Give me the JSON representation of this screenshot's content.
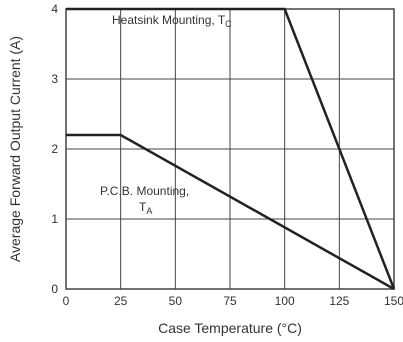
{
  "chart_data": {
    "type": "line",
    "xlabel": "Case Temperature (°C)",
    "ylabel": "Average Forward Output Current (A)",
    "xlim": [
      0,
      150
    ],
    "ylim": [
      0,
      4
    ],
    "x_ticks": [
      "0",
      "25",
      "50",
      "75",
      "100",
      "125",
      "150"
    ],
    "y_ticks": [
      "0",
      "1",
      "2",
      "3",
      "4"
    ],
    "grid": true,
    "series": [
      {
        "points": [
          [
            0,
            4
          ],
          [
            100,
            4
          ],
          [
            150,
            0
          ]
        ],
        "annotation": {
          "text": "Heatsink Mounting, T",
          "sub": "C"
        }
      },
      {
        "points": [
          [
            0,
            2.2
          ],
          [
            25,
            2.2
          ],
          [
            150,
            0
          ]
        ],
        "annotation": {
          "line1": "P.C.B. Mounting,",
          "line2": "T",
          "sub": "A"
        }
      }
    ],
    "colors": {
      "line": "#222222",
      "grid": "#444444",
      "text": "#333333"
    }
  }
}
